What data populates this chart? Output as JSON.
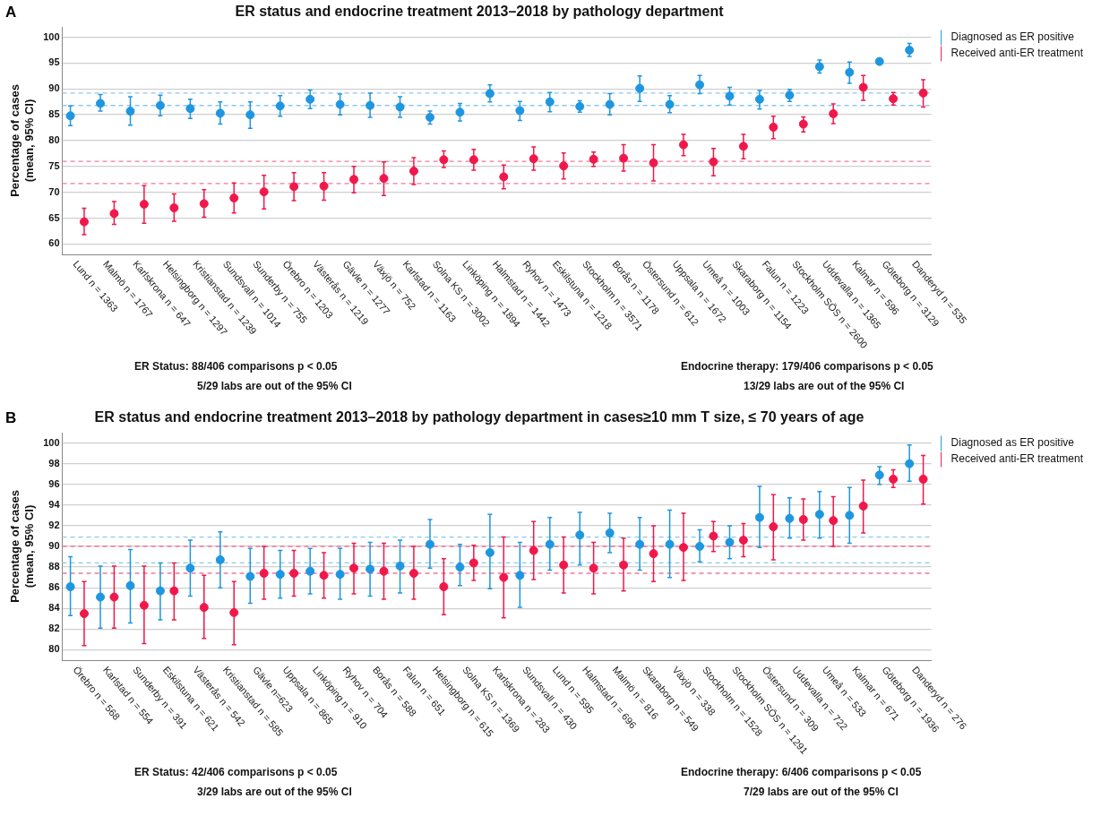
{
  "chart_data": [
    {
      "type": "scatter",
      "title": "ER status and endocrine treatment 2013–2018 by pathology department",
      "ylabel": "Percentage of cases (mean, 95% CI)",
      "categories": [
        "Lund n = 1363",
        "Malmö n = 1767",
        "Karlskrona n = 647",
        "Helsingborg n = 1297",
        "Kristianstad n = 1239",
        "Sundsvall n = 1014",
        "Sunderby n = 755",
        "Örebro n = 1203",
        "Västerås n = 1219",
        "Gävle n = 1277",
        "Växjö n = 752",
        "Karlstad n = 1163",
        "Solna KS n = 3002",
        "Linköping n = 1894",
        "Halmstad n = 1442",
        "Ryhov n = 1473",
        "Eskilstuna n = 1218",
        "Stockholm n = 3571",
        "Borås n = 1178",
        "Östersund n = 612",
        "Uppsala n = 1672",
        "Umeå n = 1003",
        "Skaraborg n = 1154",
        "Falun n = 1223",
        "Stockholm SÖS n = 2600",
        "Uddevalla n = 1365",
        "Kalmar n = 596",
        "Göteborg n = 3129",
        "Danderyd n = 535"
      ],
      "series": [
        {
          "name": "Diagnosed as ER positive",
          "color": "#1e96e0",
          "values": [
            84.8,
            87.2,
            85.7,
            86.8,
            86.2,
            85.3,
            85.0,
            86.7,
            88.0,
            87.0,
            86.8,
            86.5,
            84.5,
            85.5,
            89.1,
            85.8,
            87.5,
            86.6,
            87.0,
            90.1,
            87.0,
            90.8,
            88.6,
            88.0,
            88.8,
            94.3,
            93.2,
            95.3,
            97.5
          ],
          "errors": [
            [
              82.9,
              86.7
            ],
            [
              85.7,
              88.9
            ],
            [
              83.0,
              88.5
            ],
            [
              84.8,
              88.8
            ],
            [
              84.3,
              88.0
            ],
            [
              83.2,
              87.5
            ],
            [
              82.4,
              87.5
            ],
            [
              84.7,
              88.7
            ],
            [
              86.2,
              89.8
            ],
            [
              85.0,
              89.0
            ],
            [
              84.5,
              89.2
            ],
            [
              84.5,
              88.5
            ],
            [
              83.2,
              85.7
            ],
            [
              83.8,
              87.2
            ],
            [
              87.5,
              90.8
            ],
            [
              83.9,
              87.6
            ],
            [
              85.6,
              89.3
            ],
            [
              85.5,
              87.7
            ],
            [
              85.0,
              89.1
            ],
            [
              87.6,
              92.5
            ],
            [
              85.4,
              88.7
            ],
            [
              89.1,
              92.6
            ],
            [
              86.9,
              90.3
            ],
            [
              86.1,
              89.7
            ],
            [
              87.6,
              89.9
            ],
            [
              93.1,
              95.6
            ],
            [
              91.1,
              95.2
            ],
            [
              94.8,
              95.9
            ],
            [
              96.3,
              98.8
            ]
          ]
        },
        {
          "name": "Received anti-ER treatment",
          "color": "#f0184a",
          "values": [
            64.3,
            65.9,
            67.7,
            67.0,
            67.8,
            68.9,
            70.1,
            71.1,
            71.2,
            72.5,
            72.7,
            74.1,
            76.3,
            76.3,
            73.0,
            76.5,
            75.1,
            76.4,
            76.6,
            75.7,
            79.2,
            75.9,
            78.9,
            82.6,
            83.2,
            85.2,
            90.3,
            88.1,
            89.2
          ],
          "errors": [
            [
              61.8,
              66.9
            ],
            [
              63.8,
              68.2
            ],
            [
              64.0,
              71.3
            ],
            [
              64.4,
              69.7
            ],
            [
              65.2,
              70.5
            ],
            [
              66.0,
              71.8
            ],
            [
              66.8,
              73.3
            ],
            [
              68.4,
              73.8
            ],
            [
              68.5,
              73.8
            ],
            [
              69.9,
              75.0
            ],
            [
              69.4,
              75.9
            ],
            [
              71.5,
              76.7
            ],
            [
              74.8,
              78.0
            ],
            [
              74.3,
              78.3
            ],
            [
              70.7,
              75.3
            ],
            [
              74.3,
              78.8
            ],
            [
              72.6,
              77.6
            ],
            [
              75.0,
              77.8
            ],
            [
              74.1,
              79.2
            ],
            [
              72.2,
              79.2
            ],
            [
              77.1,
              81.2
            ],
            [
              73.2,
              78.5
            ],
            [
              76.5,
              81.2
            ],
            [
              80.4,
              84.7
            ],
            [
              81.7,
              84.6
            ],
            [
              83.3,
              87.1
            ],
            [
              87.8,
              92.6
            ],
            [
              86.9,
              89.3
            ],
            [
              86.5,
              91.8
            ]
          ]
        }
      ],
      "ylim": [
        58,
        102
      ],
      "yticks": [
        60,
        65,
        70,
        75,
        80,
        85,
        90,
        95,
        100
      ],
      "grid": "y",
      "legend": "top right",
      "marker": "circle",
      "ref_lines": [
        {
          "axis": "y",
          "value": 89.2,
          "color": "#8cc8f0",
          "line_style": "dashed"
        },
        {
          "axis": "y",
          "value": 86.8,
          "color": "#8cc8f0",
          "line_style": "dashed"
        },
        {
          "axis": "y",
          "value": 76.0,
          "color": "#f0789a",
          "line_style": "dashed"
        },
        {
          "axis": "y",
          "value": 71.7,
          "color": "#f0789a",
          "line_style": "dashed"
        }
      ],
      "annotations": [
        "A",
        "ER Status: 88/406 comparisons p < 0.05",
        "5/29 labs are out of the 95% CI",
        "Endocrine therapy: 179/406 comparisons p < 0.05",
        "13/29 labs are out of the 95% CI"
      ]
    },
    {
      "type": "scatter",
      "title": "ER status and endocrine treatment 2013–2018 by pathology department in cases≥10 mm T size, ≤ 70 years of age",
      "ylabel": "Percentage of cases (mean, 95% CI)",
      "categories": [
        "Örebro n = 568",
        "Karlstad n = 554",
        "Sunderby n = 391",
        "Eskilstuna n = 621",
        "Västerås n = 542",
        "Kristianstad n = 585",
        "Gävle n=623",
        "Uppsala n = 865",
        "Linköping n = 910",
        "Ryhov n = 704",
        "Borås n = 588",
        "Falun n = 651",
        "Helsingborg n = 615",
        "Solna KS n = 1369",
        "Karlskrona n = 283",
        "Sundsvall n = 430",
        "Lund n = 595",
        "Halmstad n = 696",
        "Malmö n = 816",
        "Skaraborg n = 549",
        "Växjö n = 338",
        "Stockholm n = 1528",
        "Stockholm SÖS n = 1291",
        "Östersund n = 309",
        "Uddevalla n = 722",
        "Umeå n = 533",
        "Kalmar n = 671",
        "Göteborg n = 1936",
        "Danderyd n = 276"
      ],
      "series": [
        {
          "name": "Diagnosed as ER positive",
          "color": "#1e96e0",
          "values": [
            86.1,
            85.1,
            86.2,
            85.7,
            87.9,
            88.7,
            87.1,
            87.3,
            87.6,
            87.3,
            87.8,
            88.1,
            90.2,
            88.0,
            89.4,
            87.2,
            90.2,
            91.1,
            91.3,
            90.2,
            90.2,
            90.0,
            90.4,
            92.8,
            92.7,
            93.1,
            93.0,
            96.9,
            98.0
          ],
          "errors": [
            [
              83.3,
              89.0
            ],
            [
              82.1,
              88.1
            ],
            [
              82.6,
              89.7
            ],
            [
              82.9,
              88.4
            ],
            [
              85.2,
              90.6
            ],
            [
              86.0,
              91.4
            ],
            [
              84.5,
              89.8
            ],
            [
              85.0,
              89.6
            ],
            [
              85.4,
              89.8
            ],
            [
              84.9,
              89.8
            ],
            [
              85.2,
              90.4
            ],
            [
              85.5,
              90.6
            ],
            [
              87.9,
              92.6
            ],
            [
              86.2,
              90.2
            ],
            [
              85.9,
              93.1
            ],
            [
              84.1,
              90.4
            ],
            [
              87.7,
              92.8
            ],
            [
              88.2,
              93.3
            ],
            [
              89.4,
              93.2
            ],
            [
              87.7,
              92.8
            ],
            [
              87.0,
              93.5
            ],
            [
              88.5,
              91.6
            ],
            [
              88.8,
              92.0
            ],
            [
              89.9,
              95.8
            ],
            [
              90.8,
              94.7
            ],
            [
              90.8,
              95.3
            ],
            [
              90.3,
              95.7
            ],
            [
              96.0,
              97.7
            ],
            [
              96.3,
              99.8
            ]
          ]
        },
        {
          "name": "Received anti-ER treatment",
          "color": "#f0184a",
          "values": [
            83.5,
            85.1,
            84.3,
            85.7,
            84.1,
            83.6,
            87.4,
            87.4,
            87.2,
            87.9,
            87.6,
            87.4,
            86.1,
            88.4,
            87.0,
            89.6,
            88.2,
            87.9,
            88.2,
            89.3,
            89.9,
            91.0,
            90.6,
            91.9,
            92.6,
            92.5,
            93.9,
            96.5,
            96.5
          ],
          "errors": [
            [
              80.4,
              86.6
            ],
            [
              82.1,
              88.1
            ],
            [
              80.6,
              88.1
            ],
            [
              82.9,
              88.4
            ],
            [
              81.1,
              87.2
            ],
            [
              80.5,
              86.6
            ],
            [
              84.9,
              90.0
            ],
            [
              85.2,
              89.6
            ],
            [
              85.0,
              89.4
            ],
            [
              85.4,
              90.3
            ],
            [
              84.9,
              90.3
            ],
            [
              84.9,
              90.0
            ],
            [
              83.4,
              88.8
            ],
            [
              86.7,
              90.1
            ],
            [
              83.1,
              90.9
            ],
            [
              86.8,
              92.4
            ],
            [
              85.5,
              90.9
            ],
            [
              85.4,
              90.4
            ],
            [
              85.7,
              90.8
            ],
            [
              86.6,
              92.0
            ],
            [
              86.7,
              93.2
            ],
            [
              89.5,
              92.4
            ],
            [
              89.0,
              92.2
            ],
            [
              88.7,
              95.0
            ],
            [
              90.6,
              94.6
            ],
            [
              90.0,
              94.8
            ],
            [
              91.3,
              96.4
            ],
            [
              95.7,
              97.4
            ],
            [
              94.1,
              98.8
            ]
          ]
        }
      ],
      "ylim": [
        79,
        101
      ],
      "yticks": [
        80,
        82,
        84,
        86,
        88,
        90,
        92,
        94,
        96,
        98,
        100
      ],
      "grid": "y",
      "legend": "top right",
      "marker": "circle",
      "ref_lines": [
        {
          "axis": "y",
          "value": 90.9,
          "color": "#8cc8f0",
          "line_style": "dashed"
        },
        {
          "axis": "y",
          "value": 88.4,
          "color": "#8cc8f0",
          "line_style": "dashed"
        },
        {
          "axis": "y",
          "value": 90.0,
          "color": "#f0789a",
          "line_style": "dashed"
        },
        {
          "axis": "y",
          "value": 87.4,
          "color": "#f0789a",
          "line_style": "dashed"
        }
      ],
      "annotations": [
        "B",
        "ER Status: 42/406 comparisons p < 0.05",
        "3/29 labs are out of the 95% CI",
        "Endocrine therapy: 6/406 comparisons p < 0.05",
        "7/29 labs are out of the 95% CI"
      ]
    }
  ]
}
